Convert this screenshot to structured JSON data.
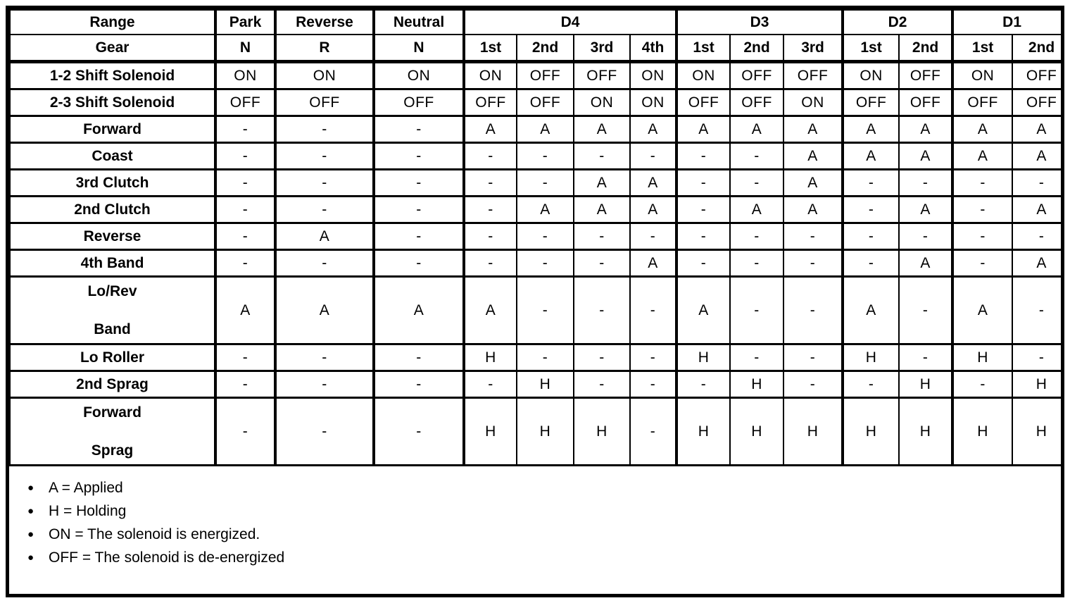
{
  "document": {
    "header": {
      "range_label": "Range",
      "gear_label": "Gear",
      "groups": [
        {
          "label": "Park",
          "span": 1
        },
        {
          "label": "Reverse",
          "span": 1
        },
        {
          "label": "Neutral",
          "span": 1
        },
        {
          "label": "D4",
          "span": 4
        },
        {
          "label": "D3",
          "span": 3
        },
        {
          "label": "D2",
          "span": 2
        },
        {
          "label": "D1",
          "span": 2
        }
      ],
      "gears": [
        "N",
        "R",
        "N",
        "1st",
        "2nd",
        "3rd",
        "4th",
        "1st",
        "2nd",
        "3rd",
        "1st",
        "2nd",
        "1st",
        "2nd"
      ]
    },
    "rows": [
      {
        "label": "1-2 Shift Solenoid",
        "values": [
          "ON",
          "ON",
          "ON",
          "ON",
          "OFF",
          "OFF",
          "ON",
          "ON",
          "OFF",
          "OFF",
          "ON",
          "OFF",
          "ON",
          "OFF"
        ]
      },
      {
        "label": "2-3 Shift Solenoid",
        "values": [
          "OFF",
          "OFF",
          "OFF",
          "OFF",
          "OFF",
          "ON",
          "ON",
          "OFF",
          "OFF",
          "ON",
          "OFF",
          "OFF",
          "OFF",
          "OFF"
        ]
      },
      {
        "label": "Forward",
        "values": [
          "-",
          "-",
          "-",
          "A",
          "A",
          "A",
          "A",
          "A",
          "A",
          "A",
          "A",
          "A",
          "A",
          "A"
        ]
      },
      {
        "label": "Coast",
        "values": [
          "-",
          "-",
          "-",
          "-",
          "-",
          "-",
          "-",
          "-",
          "-",
          "A",
          "A",
          "A",
          "A",
          "A"
        ]
      },
      {
        "label": "3rd Clutch",
        "values": [
          "-",
          "-",
          "-",
          "-",
          "-",
          "A",
          "A",
          "-",
          "-",
          "A",
          "-",
          "-",
          "-",
          "-"
        ]
      },
      {
        "label": "2nd Clutch",
        "values": [
          "-",
          "-",
          "-",
          "-",
          "A",
          "A",
          "A",
          "-",
          "A",
          "A",
          "-",
          "A",
          "-",
          "A"
        ]
      },
      {
        "label": "Reverse",
        "values": [
          "-",
          "A",
          "-",
          "-",
          "-",
          "-",
          "-",
          "-",
          "-",
          "-",
          "-",
          "-",
          "-",
          "-"
        ]
      },
      {
        "label": "4th Band",
        "values": [
          "-",
          "-",
          "-",
          "-",
          "-",
          "-",
          "A",
          "-",
          "-",
          "-",
          "-",
          "A",
          "-",
          "A"
        ]
      },
      {
        "label": "Lo/Rev",
        "label2": "Band",
        "tall": true,
        "values": [
          "A",
          "A",
          "A",
          "A",
          "-",
          "-",
          "-",
          "A",
          "-",
          "-",
          "A",
          "-",
          "A",
          "-"
        ]
      },
      {
        "label": "Lo Roller",
        "values": [
          "-",
          "-",
          "-",
          "H",
          "-",
          "-",
          "-",
          "H",
          "-",
          "-",
          "H",
          "-",
          "H",
          "-"
        ]
      },
      {
        "label": "2nd Sprag",
        "values": [
          "-",
          "-",
          "-",
          "-",
          "H",
          "-",
          "-",
          "-",
          "H",
          "-",
          "-",
          "H",
          "-",
          "H"
        ]
      },
      {
        "label": "Forward",
        "label2": "Sprag",
        "tall": true,
        "values": [
          "-",
          "-",
          "-",
          "H",
          "H",
          "H",
          "-",
          "H",
          "H",
          "H",
          "H",
          "H",
          "H",
          "H"
        ]
      }
    ],
    "legend": {
      "bullet_icon": "●",
      "items": [
        "A = Applied",
        "H = Holding",
        "ON = The solenoid is energized.",
        "OFF = The solenoid is de-energized"
      ]
    },
    "colors": {
      "ink": "#000000",
      "paper": "#ffffff"
    }
  }
}
